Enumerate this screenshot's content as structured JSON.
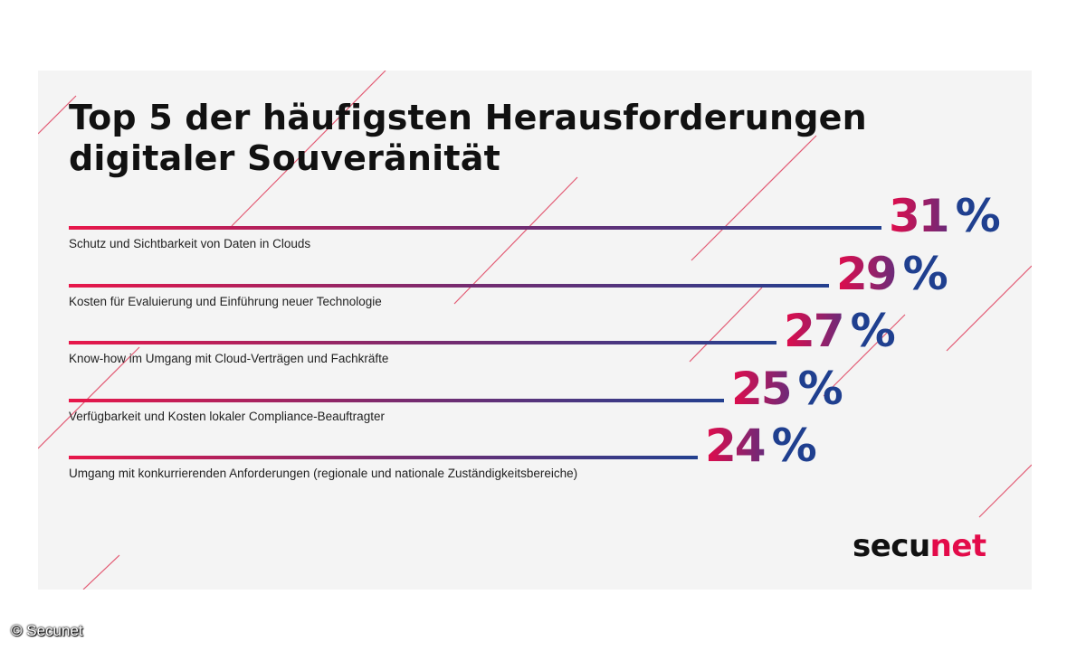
{
  "chart_data": {
    "type": "bar",
    "title_lines": [
      "Top 5 der häufigsten Herausforderungen",
      "digitaler Souveränität"
    ],
    "unit": "%",
    "categories": [
      "Schutz und Sichtbarkeit von Daten in Clouds",
      "Kosten für Evaluierung und Einführung neuer Technologie",
      "Know-how im Umgang mit Cloud-Verträgen und Fachkräfte",
      "Verfügbarkeit und Kosten lokaler Compliance-Beauftragter",
      "Umgang mit konkurrierenden Anforderungen (regionale und nationale Zuständigkeitsbereiche)"
    ],
    "values": [
      31,
      29,
      27,
      25,
      24
    ],
    "xlim": [
      0,
      31
    ]
  },
  "brand": {
    "part1": "secu",
    "part2": "net"
  },
  "credit": "© Secunet",
  "colors": {
    "accent_red": "#e30b4a",
    "accent_blue": "#1f3f8f",
    "line_start": "#e8174a",
    "line_end": "#23408f"
  }
}
